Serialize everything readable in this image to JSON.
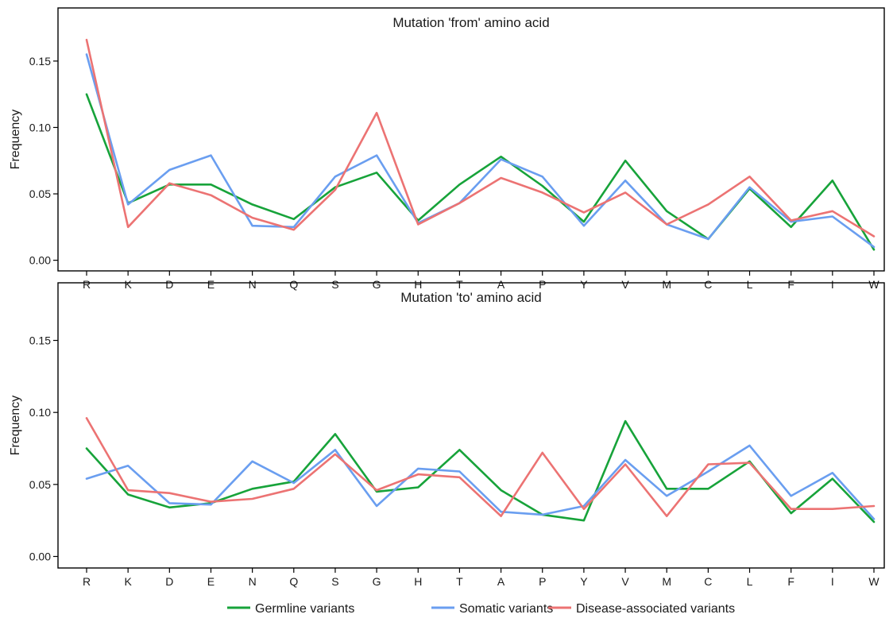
{
  "chart_data": [
    {
      "type": "line",
      "title": "Mutation 'from' amino acid",
      "xlabel": "",
      "ylabel": "Frequency",
      "ylim": [
        -0.008,
        0.19
      ],
      "yticks": [
        "0.00",
        "0.05",
        "0.10",
        "0.15"
      ],
      "categories": [
        "R",
        "K",
        "D",
        "E",
        "N",
        "Q",
        "S",
        "G",
        "H",
        "T",
        "A",
        "P",
        "Y",
        "V",
        "M",
        "C",
        "L",
        "F",
        "I",
        "W"
      ],
      "series": [
        {
          "name": "Germline variants",
          "color": "#17a33a",
          "values": [
            0.125,
            0.043,
            0.057,
            0.057,
            0.042,
            0.031,
            0.055,
            0.066,
            0.03,
            0.057,
            0.078,
            0.056,
            0.029,
            0.075,
            0.037,
            0.016,
            0.054,
            0.025,
            0.06,
            0.008
          ]
        },
        {
          "name": "Somatic variants",
          "color": "#6a9ef0",
          "values": [
            0.155,
            0.042,
            0.068,
            0.079,
            0.026,
            0.025,
            0.063,
            0.079,
            0.028,
            0.043,
            0.076,
            0.063,
            0.026,
            0.06,
            0.027,
            0.016,
            0.055,
            0.029,
            0.033,
            0.01
          ]
        },
        {
          "name": "Disease-associated variants",
          "color": "#ec7373",
          "values": [
            0.166,
            0.025,
            0.058,
            0.049,
            0.032,
            0.023,
            0.053,
            0.111,
            0.027,
            0.043,
            0.062,
            0.051,
            0.036,
            0.051,
            0.027,
            0.042,
            0.063,
            0.03,
            0.037,
            0.018
          ]
        }
      ]
    },
    {
      "type": "line",
      "title": "Mutation 'to' amino acid",
      "xlabel": "",
      "ylabel": "Frequency",
      "ylim": [
        -0.008,
        0.19
      ],
      "yticks": [
        "0.00",
        "0.05",
        "0.10",
        "0.15"
      ],
      "categories": [
        "R",
        "K",
        "D",
        "E",
        "N",
        "Q",
        "S",
        "G",
        "H",
        "T",
        "A",
        "P",
        "Y",
        "V",
        "M",
        "C",
        "L",
        "F",
        "I",
        "W"
      ],
      "series": [
        {
          "name": "Germline variants",
          "color": "#17a33a",
          "values": [
            0.075,
            0.043,
            0.034,
            0.037,
            0.047,
            0.052,
            0.085,
            0.045,
            0.048,
            0.074,
            0.046,
            0.029,
            0.025,
            0.094,
            0.047,
            0.047,
            0.066,
            0.03,
            0.054,
            0.024
          ]
        },
        {
          "name": "Somatic variants",
          "color": "#6a9ef0",
          "values": [
            0.054,
            0.063,
            0.037,
            0.036,
            0.066,
            0.051,
            0.074,
            0.035,
            0.061,
            0.059,
            0.031,
            0.029,
            0.035,
            0.067,
            0.042,
            0.059,
            0.077,
            0.042,
            0.058,
            0.026
          ]
        },
        {
          "name": "Disease-associated variants",
          "color": "#ec7373",
          "values": [
            0.096,
            0.046,
            0.044,
            0.038,
            0.04,
            0.047,
            0.071,
            0.046,
            0.057,
            0.055,
            0.028,
            0.072,
            0.033,
            0.064,
            0.028,
            0.064,
            0.065,
            0.033,
            0.033,
            0.035
          ]
        }
      ]
    }
  ],
  "legend": {
    "position": "bottom",
    "items": [
      {
        "label": "Germline variants",
        "color": "#17a33a"
      },
      {
        "label": "Somatic variants",
        "color": "#6a9ef0"
      },
      {
        "label": "Disease-associated variants",
        "color": "#ec7373"
      }
    ]
  }
}
